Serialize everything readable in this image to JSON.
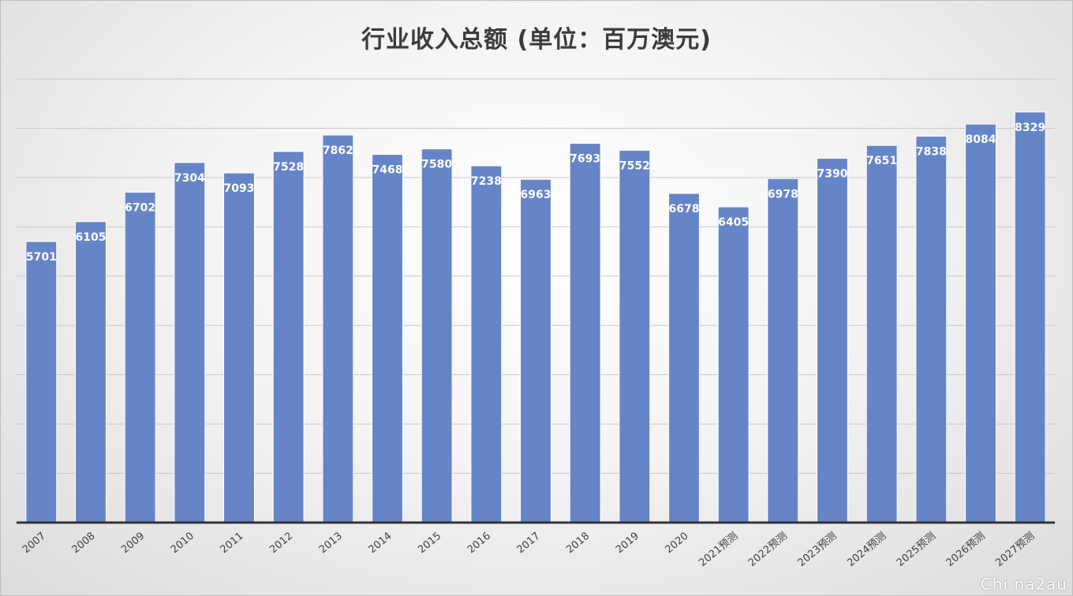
{
  "chart_data": {
    "type": "bar",
    "title": "行业收入总额 (单位：百万澳元)",
    "xlabel": "",
    "ylabel": "",
    "categories": [
      "2007",
      "2008",
      "2009",
      "2010",
      "2011",
      "2012",
      "2013",
      "2014",
      "2015",
      "2016",
      "2017",
      "2018",
      "2019",
      "2020",
      "2021预测",
      "2022预测",
      "2023预测",
      "2024预测",
      "2025预测",
      "2026预测",
      "2027预测"
    ],
    "values": [
      5701,
      6105,
      6702,
      7304,
      7093,
      7528,
      7862,
      7468,
      7580,
      7238,
      6963,
      7693,
      7552,
      6678,
      6405,
      6978,
      7390,
      7651,
      7838,
      8084,
      8329
    ],
    "ylim": [
      0,
      9000
    ],
    "grid": true,
    "legend": "none",
    "bar_color": "#6585c8",
    "label_color": "#ffffff",
    "data_labels": true
  },
  "watermark": "Chi na2au"
}
